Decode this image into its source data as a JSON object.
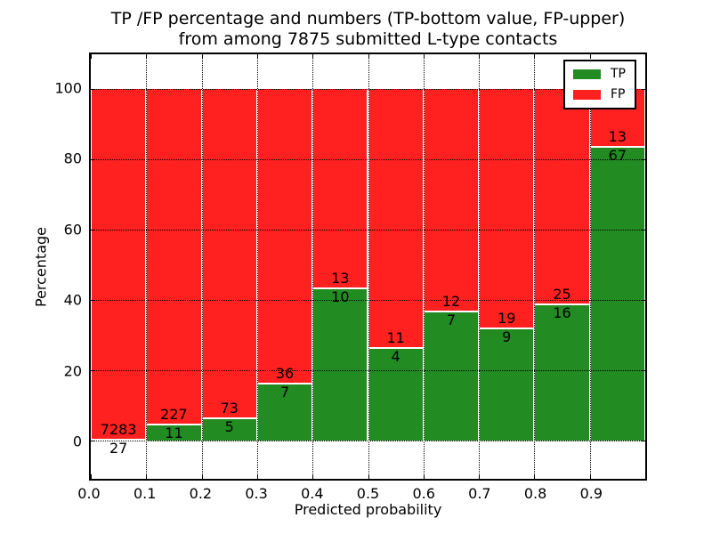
{
  "chart_data": {
    "type": "bar",
    "stacked": true,
    "title_line1": "TP /FP percentage and numbers (TP-bottom value, FP-upper)",
    "title_line2": "from among 7875 submitted L-type contacts",
    "xlabel": "Predicted probability",
    "ylabel": "Percentage",
    "x_tick_labels": [
      "0.0",
      "0.1",
      "0.2",
      "0.3",
      "0.4",
      "0.5",
      "0.6",
      "0.7",
      "0.8",
      "0.9"
    ],
    "y_tick_labels": [
      "0",
      "20",
      "40",
      "60",
      "80",
      "100"
    ],
    "xlim": [
      0.0,
      1.0
    ],
    "ylim": [
      -11,
      110
    ],
    "grid": "dotted",
    "bin_width": 0.1,
    "categories": [
      "0.0-0.1",
      "0.1-0.2",
      "0.2-0.3",
      "0.3-0.4",
      "0.4-0.5",
      "0.5-0.6",
      "0.6-0.7",
      "0.7-0.8",
      "0.8-0.9",
      "0.9-1.0"
    ],
    "series": [
      {
        "name": "TP",
        "counts": [
          27,
          11,
          5,
          7,
          10,
          4,
          7,
          9,
          16,
          67
        ]
      },
      {
        "name": "FP",
        "counts": [
          7283,
          227,
          73,
          36,
          13,
          11,
          12,
          19,
          25,
          13
        ]
      }
    ],
    "tp_percent": [
      0.37,
      4.62,
      6.41,
      16.28,
      43.48,
      26.67,
      36.84,
      32.14,
      39.02,
      83.75
    ],
    "legend": {
      "position": "upper right",
      "entries": [
        {
          "label": "TP",
          "color": "#228b22"
        },
        {
          "label": "FP",
          "color": "#ff2020"
        }
      ]
    },
    "colors": {
      "tp": "#228b22",
      "fp": "#ff2020",
      "grid": "#000000",
      "background": "#ffffff"
    }
  }
}
